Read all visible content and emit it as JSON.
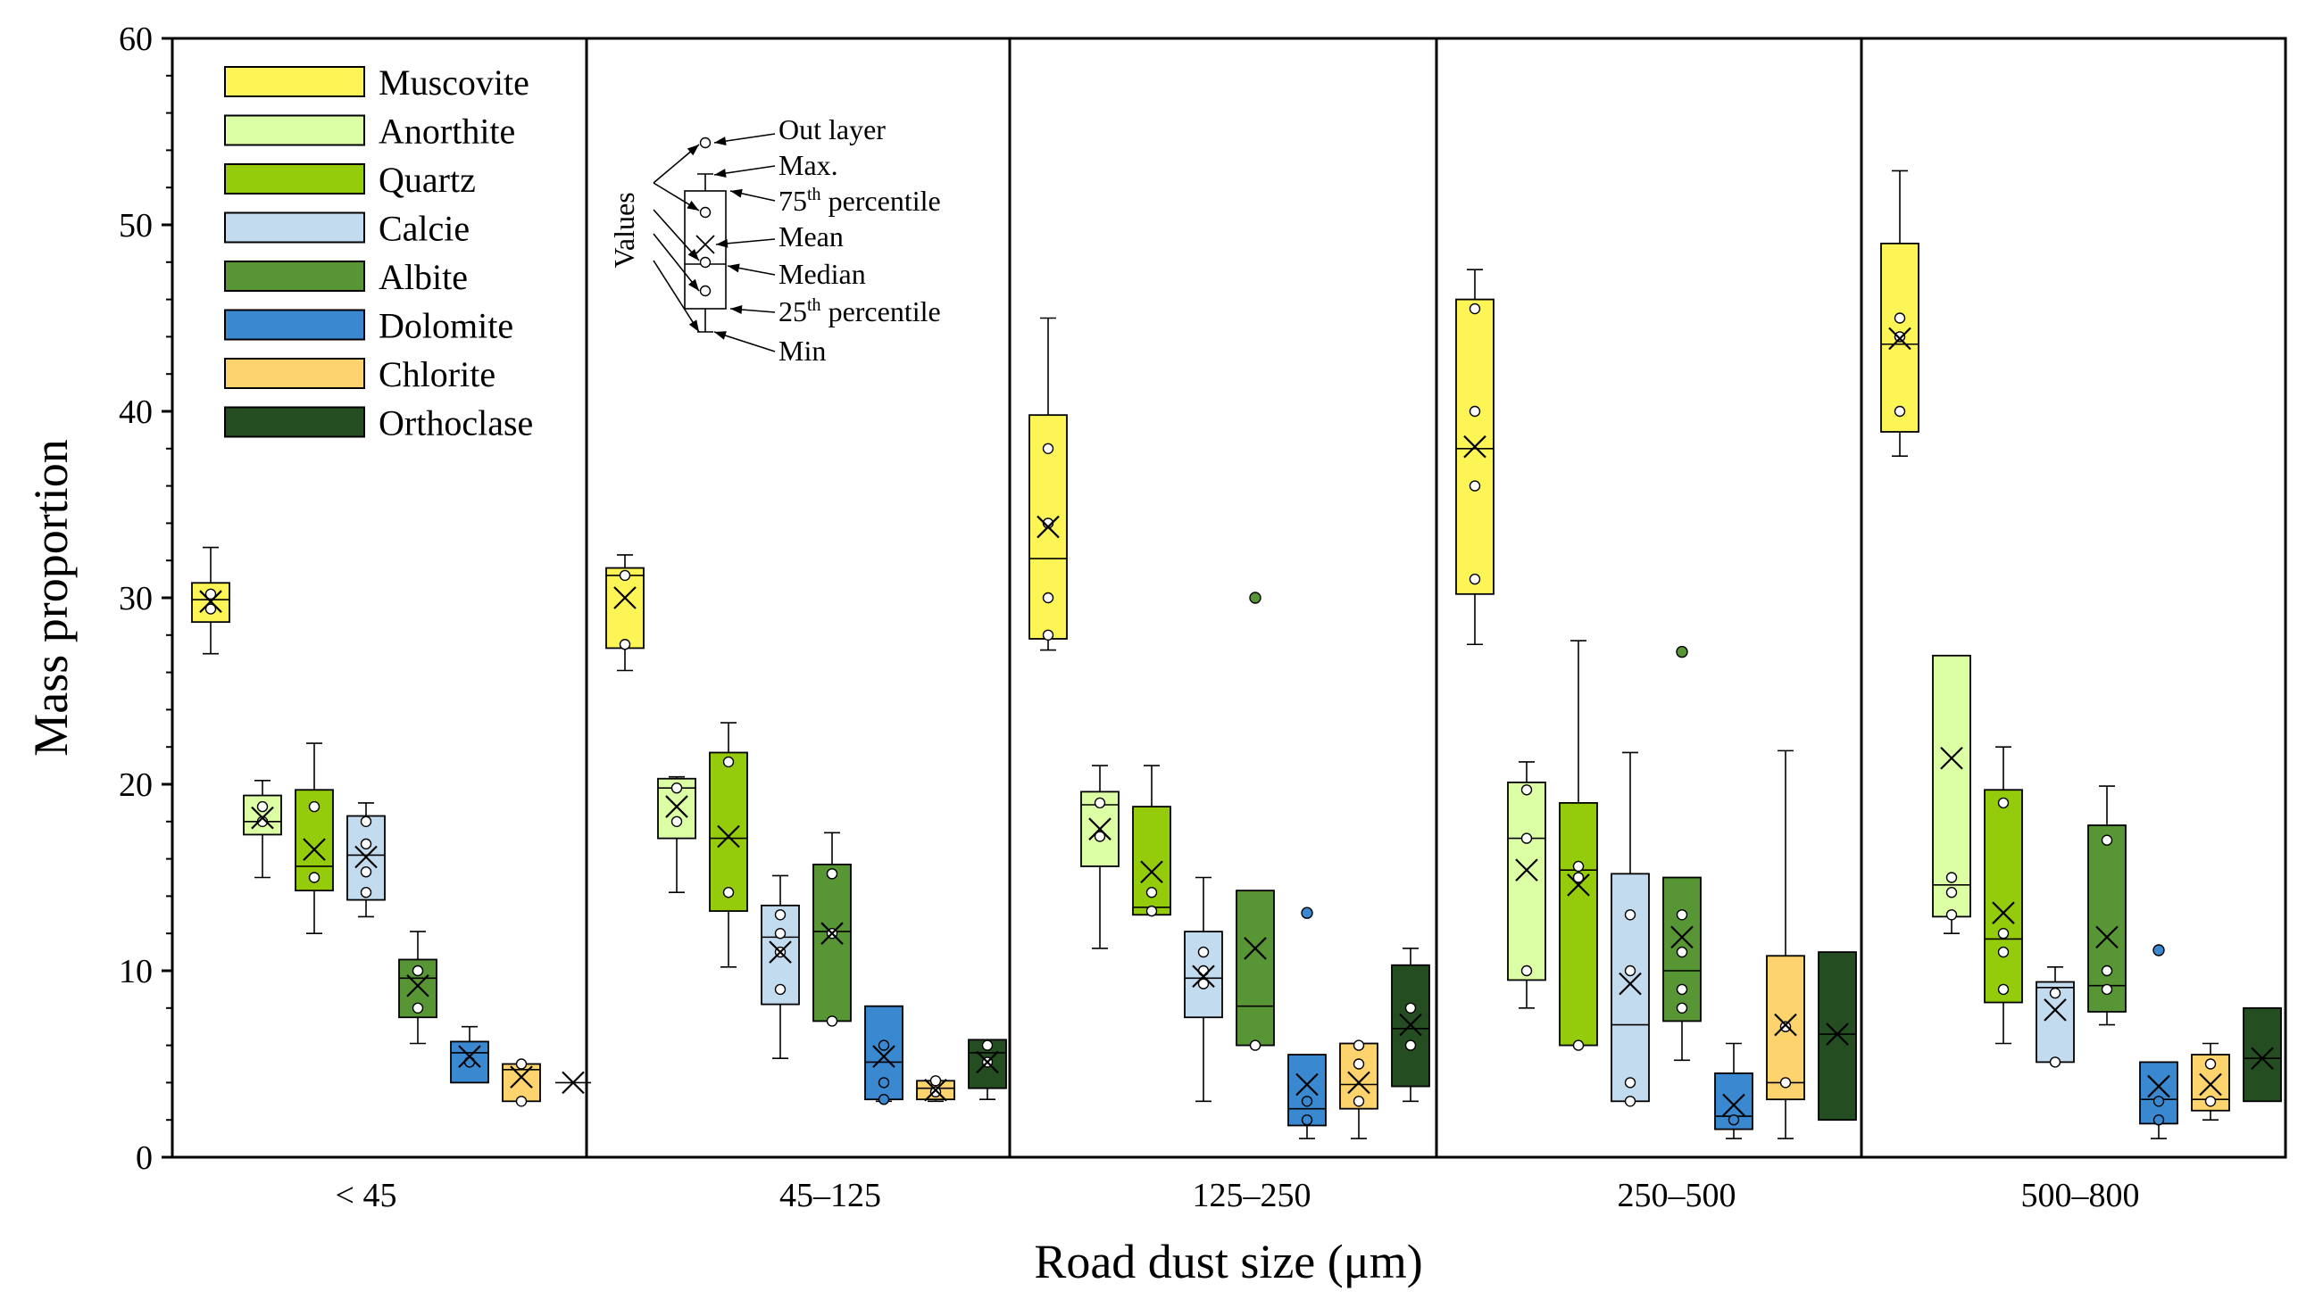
{
  "chart_data": {
    "type": "box",
    "xlabel": "Road dust size (μm)",
    "ylabel": "Mass proportion",
    "ylim": [
      0,
      60
    ],
    "yticks": [
      0,
      10,
      20,
      30,
      40,
      50,
      60
    ],
    "groups": [
      "< 45",
      "45–125",
      "125–250",
      "250–500",
      "500–800"
    ],
    "series": [
      {
        "name": "Muscovite",
        "color": "#fdf556",
        "dot": "#ffffff",
        "boxes": [
          {
            "min": 27.0,
            "q1": 28.7,
            "median": 29.9,
            "q3": 30.8,
            "max": 32.7,
            "mean": 29.8,
            "points": [
              29.4,
              30.2
            ],
            "outliers": []
          },
          {
            "min": 26.1,
            "q1": 27.3,
            "median": 31.2,
            "q3": 31.6,
            "max": 32.3,
            "mean": 30.0,
            "points": [
              27.5,
              31.2
            ],
            "outliers": []
          },
          {
            "min": 27.2,
            "q1": 27.8,
            "median": 32.1,
            "q3": 39.8,
            "max": 45.0,
            "mean": 33.8,
            "points": [
              28.0,
              30.0,
              34.0,
              38.0
            ],
            "outliers": []
          },
          {
            "min": 27.5,
            "q1": 30.2,
            "median": 38.0,
            "q3": 46.0,
            "max": 47.6,
            "mean": 38.1,
            "points": [
              31.0,
              36.0,
              40.0,
              45.5
            ],
            "outliers": []
          },
          {
            "min": 37.6,
            "q1": 38.9,
            "median": 43.6,
            "q3": 49.0,
            "max": 52.9,
            "mean": 43.9,
            "points": [
              40.0,
              44.0,
              45.0
            ],
            "outliers": []
          }
        ]
      },
      {
        "name": "Anorthite",
        "color": "#dcffa6",
        "dot": "#ffffff",
        "boxes": [
          {
            "min": 15.0,
            "q1": 17.3,
            "median": 18.0,
            "q3": 19.4,
            "max": 20.2,
            "mean": 18.2,
            "points": [
              18.0,
              18.8
            ],
            "outliers": []
          },
          {
            "min": 14.2,
            "q1": 17.1,
            "median": 19.8,
            "q3": 20.3,
            "max": 20.4,
            "mean": 18.8,
            "points": [
              18.0,
              19.8
            ],
            "outliers": []
          },
          {
            "min": 11.2,
            "q1": 15.6,
            "median": 18.9,
            "q3": 19.6,
            "max": 21.0,
            "mean": 17.6,
            "points": [
              17.2,
              19.0
            ],
            "outliers": []
          },
          {
            "min": 8.0,
            "q1": 9.5,
            "median": 17.1,
            "q3": 20.1,
            "max": 21.2,
            "mean": 15.4,
            "points": [
              10.0,
              17.1,
              19.7
            ],
            "outliers": []
          },
          {
            "min": 12.0,
            "q1": 12.9,
            "median": 14.6,
            "q3": 26.9,
            "max": 26.9,
            "mean": 21.4,
            "points": [
              13.0,
              14.2,
              15.0
            ],
            "outliers": []
          }
        ]
      },
      {
        "name": "Quartz",
        "color": "#94cc0c",
        "dot": "#ffffff",
        "boxes": [
          {
            "min": 12.0,
            "q1": 14.3,
            "median": 15.6,
            "q3": 19.7,
            "max": 22.2,
            "mean": 16.5,
            "points": [
              15.0,
              18.8
            ],
            "outliers": []
          },
          {
            "min": 10.2,
            "q1": 13.2,
            "median": 17.1,
            "q3": 21.7,
            "max": 23.3,
            "mean": 17.2,
            "points": [
              14.2,
              21.2
            ],
            "outliers": []
          },
          {
            "min": 13.0,
            "q1": 13.0,
            "median": 13.4,
            "q3": 18.8,
            "max": 21.0,
            "mean": 15.3,
            "points": [
              13.2,
              14.2
            ],
            "outliers": []
          },
          {
            "min": 6.0,
            "q1": 6.0,
            "median": 15.4,
            "q3": 19.0,
            "max": 27.7,
            "mean": 14.6,
            "points": [
              6.0,
              15.0,
              15.6
            ],
            "outliers": []
          },
          {
            "min": 6.1,
            "q1": 8.3,
            "median": 11.7,
            "q3": 19.7,
            "max": 22.0,
            "mean": 13.1,
            "points": [
              9.0,
              11.0,
              12.0,
              19.0
            ],
            "outliers": []
          }
        ]
      },
      {
        "name": "Calcie",
        "color": "#c3dbef",
        "dot": "#ffffff",
        "boxes": [
          {
            "min": 12.9,
            "q1": 13.8,
            "median": 16.2,
            "q3": 18.3,
            "max": 19.0,
            "mean": 16.1,
            "points": [
              14.2,
              15.3,
              16.8,
              18.0
            ],
            "outliers": []
          },
          {
            "min": 5.3,
            "q1": 8.2,
            "median": 11.8,
            "q3": 13.5,
            "max": 15.1,
            "mean": 11.0,
            "points": [
              9.0,
              11.0,
              12.0,
              13.0
            ],
            "outliers": []
          },
          {
            "min": 3.0,
            "q1": 7.5,
            "median": 9.6,
            "q3": 12.1,
            "max": 15.0,
            "mean": 9.7,
            "points": [
              9.3,
              10.0,
              11.0
            ],
            "outliers": []
          },
          {
            "min": 3.0,
            "q1": 3.0,
            "median": 7.1,
            "q3": 15.2,
            "max": 21.7,
            "mean": 9.3,
            "points": [
              3.0,
              4.0,
              10.0,
              13.0
            ],
            "outliers": []
          },
          {
            "min": 5.1,
            "q1": 5.1,
            "median": 9.1,
            "q3": 9.4,
            "max": 10.2,
            "mean": 7.9,
            "points": [
              5.1,
              8.8
            ],
            "outliers": []
          }
        ]
      },
      {
        "name": "Albite",
        "color": "#589535",
        "dot": "#ffffff",
        "boxes": [
          {
            "min": 6.1,
            "q1": 7.5,
            "median": 9.6,
            "q3": 10.6,
            "max": 12.1,
            "mean": 9.2,
            "points": [
              8.0,
              10.0
            ],
            "outliers": []
          },
          {
            "min": 7.3,
            "q1": 7.3,
            "median": 12.1,
            "q3": 15.7,
            "max": 17.4,
            "mean": 12.0,
            "points": [
              7.3,
              12.0,
              15.2
            ],
            "outliers": []
          },
          {
            "min": 6.0,
            "q1": 6.0,
            "median": 8.1,
            "q3": 14.3,
            "max": 14.3,
            "mean": 11.2,
            "points": [
              6.0
            ],
            "outliers": [
              30.0
            ]
          },
          {
            "min": 5.2,
            "q1": 7.3,
            "median": 10.0,
            "q3": 15.0,
            "max": 15.0,
            "mean": 11.8,
            "points": [
              8.0,
              9.0,
              11.0,
              13.0
            ],
            "outliers": [
              27.1
            ]
          },
          {
            "min": 7.1,
            "q1": 7.8,
            "median": 9.2,
            "q3": 17.8,
            "max": 19.9,
            "mean": 11.8,
            "points": [
              9.0,
              10.0,
              17.0
            ],
            "outliers": []
          }
        ]
      },
      {
        "name": "Dolomite",
        "color": "#3a88d0",
        "dot": "#3a88d0",
        "boxes": [
          {
            "min": 4.0,
            "q1": 4.0,
            "median": 5.6,
            "q3": 6.2,
            "max": 7.0,
            "mean": 5.4,
            "points": [
              5.1
            ],
            "outliers": []
          },
          {
            "min": 3.0,
            "q1": 3.1,
            "median": 5.1,
            "q3": 8.1,
            "max": 8.1,
            "mean": 5.4,
            "points": [
              3.1,
              4.0,
              6.0
            ],
            "outliers": []
          },
          {
            "min": 1.0,
            "q1": 1.7,
            "median": 2.6,
            "q3": 5.5,
            "max": 5.5,
            "mean": 3.9,
            "points": [
              2.0,
              3.0
            ],
            "outliers": [
              13.1
            ]
          },
          {
            "min": 1.0,
            "q1": 1.5,
            "median": 2.2,
            "q3": 4.5,
            "max": 6.1,
            "mean": 2.8,
            "points": [
              2.0
            ],
            "outliers": []
          },
          {
            "min": 1.0,
            "q1": 1.8,
            "median": 3.1,
            "q3": 5.1,
            "max": 5.1,
            "mean": 3.8,
            "points": [
              2.0,
              3.0
            ],
            "outliers": [
              11.1
            ]
          }
        ]
      },
      {
        "name": "Chlorite",
        "color": "#fdd36d",
        "dot": "#ffffff",
        "boxes": [
          {
            "min": 3.0,
            "q1": 3.0,
            "median": 4.7,
            "q3": 5.0,
            "max": 5.0,
            "mean": 4.3,
            "points": [
              3.0,
              5.0
            ],
            "outliers": []
          },
          {
            "min": 3.0,
            "q1": 3.1,
            "median": 3.7,
            "q3": 4.1,
            "max": 4.1,
            "mean": 3.6,
            "points": [
              3.5,
              4.1
            ],
            "outliers": []
          },
          {
            "min": 1.0,
            "q1": 2.6,
            "median": 3.9,
            "q3": 6.1,
            "max": 6.1,
            "mean": 4.0,
            "points": [
              3.0,
              5.0,
              6.0
            ],
            "outliers": []
          },
          {
            "min": 1.0,
            "q1": 3.1,
            "median": 4.0,
            "q3": 10.8,
            "max": 21.8,
            "mean": 7.1,
            "points": [
              4.0,
              7.0
            ],
            "outliers": []
          },
          {
            "min": 2.0,
            "q1": 2.5,
            "median": 3.1,
            "q3": 5.5,
            "max": 6.1,
            "mean": 3.9,
            "points": [
              3.0,
              5.0
            ],
            "outliers": []
          }
        ]
      },
      {
        "name": "Orthoclase",
        "color": "#254d22",
        "dot": "#ffffff",
        "boxes": [
          {
            "min": 4.0,
            "q1": 4.0,
            "median": 4.0,
            "q3": 4.0,
            "max": 4.0,
            "mean": 4.0,
            "points": [],
            "outliers": []
          },
          {
            "min": 3.1,
            "q1": 3.7,
            "median": 5.6,
            "q3": 6.3,
            "max": 6.3,
            "mean": 5.1,
            "points": [
              5.1,
              6.0
            ],
            "outliers": []
          },
          {
            "min": 3.0,
            "q1": 3.8,
            "median": 6.9,
            "q3": 10.3,
            "max": 11.2,
            "mean": 7.1,
            "points": [
              6.0,
              8.0
            ],
            "outliers": []
          },
          {
            "min": 2.0,
            "q1": 2.0,
            "median": 6.6,
            "q3": 11.0,
            "max": 11.0,
            "mean": 6.6,
            "points": [],
            "outliers": []
          },
          {
            "min": 3.0,
            "q1": 3.0,
            "median": 5.3,
            "q3": 8.0,
            "max": 8.0,
            "mean": 5.3,
            "points": [],
            "outliers": []
          }
        ]
      }
    ],
    "key": {
      "values_label": "Values",
      "labels": [
        "Out layer",
        "Max.",
        "75th percentile",
        "Mean",
        "Median",
        "25th percentile",
        "Min"
      ]
    }
  }
}
